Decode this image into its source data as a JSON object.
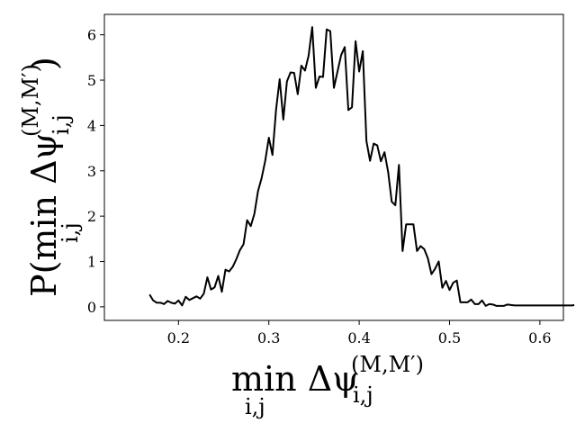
{
  "chart_data": {
    "type": "line",
    "xlabel": "min Δψ",
    "xlabel_sub": "i,j",
    "xlabel_sup": "(M,M′)",
    "xlabel_psi_sub": "i,j",
    "ylabel": "P(min Δψ",
    "ylabel_sub": "i,j",
    "ylabel_sup": "(M,M′)",
    "ylabel_psi_sub": "i,j",
    "ylabel_close": ")",
    "xlim": [
      0.118,
      0.626
    ],
    "ylim": [
      -0.3,
      6.45
    ],
    "xticks": [
      0.2,
      0.3,
      0.4,
      0.5,
      0.6
    ],
    "xtick_labels": [
      "0.2",
      "0.3",
      "0.4",
      "0.5",
      "0.6"
    ],
    "yticks": [
      0,
      1,
      2,
      3,
      4,
      5,
      6
    ],
    "ytick_labels": [
      "0",
      "1",
      "2",
      "3",
      "4",
      "5",
      "6"
    ],
    "grid": false,
    "line_color": "#000000",
    "series": [
      {
        "x": [
          0.168,
          0.172,
          0.176,
          0.18,
          0.184,
          0.188,
          0.192,
          0.196,
          0.2,
          0.204,
          0.208,
          0.212,
          0.216,
          0.22,
          0.224,
          0.228,
          0.232,
          0.236,
          0.24,
          0.244,
          0.248,
          0.252,
          0.256,
          0.26,
          0.264,
          0.268,
          0.272,
          0.276,
          0.28,
          0.284,
          0.288,
          0.292,
          0.296,
          0.3,
          0.304,
          0.308,
          0.312,
          0.316,
          0.32,
          0.324,
          0.328,
          0.332,
          0.336,
          0.34,
          0.344,
          0.348,
          0.352,
          0.356,
          0.36,
          0.364,
          0.368,
          0.372,
          0.376,
          0.38,
          0.384,
          0.388,
          0.392,
          0.396,
          0.4,
          0.404,
          0.408,
          0.412,
          0.416,
          0.42,
          0.424,
          0.428,
          0.432,
          0.436,
          0.44,
          0.444,
          0.448,
          0.452,
          0.456,
          0.46,
          0.464,
          0.468,
          0.472,
          0.476,
          0.48,
          0.484,
          0.488,
          0.492,
          0.496,
          0.5,
          0.504,
          0.508,
          0.512,
          0.516,
          0.52,
          0.524,
          0.528,
          0.532,
          0.536,
          0.54,
          0.544,
          0.548,
          0.552,
          0.556,
          0.56,
          0.564,
          0.568,
          0.572,
          0.576,
          0.58,
          0.584,
          0.588,
          0.592,
          0.596,
          0.6,
          0.604,
          0.608,
          0.612,
          0.616,
          0.62,
          0.624,
          0.628,
          0.632,
          0.636,
          0.638
        ],
        "y": [
          0.27,
          0.14,
          0.09,
          0.09,
          0.06,
          0.13,
          0.09,
          0.07,
          0.14,
          0.03,
          0.22,
          0.15,
          0.19,
          0.23,
          0.18,
          0.29,
          0.65,
          0.38,
          0.43,
          0.68,
          0.33,
          0.82,
          0.78,
          0.88,
          1.05,
          1.25,
          1.38,
          1.91,
          1.78,
          2.05,
          2.55,
          2.84,
          3.22,
          3.73,
          3.35,
          4.35,
          5.02,
          4.13,
          4.97,
          5.17,
          5.16,
          4.69,
          5.32,
          5.21,
          5.54,
          6.17,
          4.83,
          5.08,
          5.07,
          6.12,
          6.08,
          4.83,
          5.19,
          5.55,
          5.73,
          4.34,
          4.4,
          5.86,
          5.19,
          5.64,
          3.66,
          3.22,
          3.6,
          3.56,
          3.21,
          3.41,
          2.98,
          2.32,
          2.24,
          3.13,
          1.23,
          1.82,
          1.82,
          1.82,
          1.23,
          1.34,
          1.27,
          1.07,
          0.72,
          0.84,
          1.0,
          0.42,
          0.57,
          0.37,
          0.53,
          0.58,
          0.1,
          0.1,
          0.1,
          0.16,
          0.06,
          0.06,
          0.14,
          0.02,
          0.06,
          0.05,
          0.02,
          0.02,
          0.02,
          0.05,
          0.04,
          0.03,
          0.03,
          0.03,
          0.03,
          0.03,
          0.03,
          0.03,
          0.03,
          0.03,
          0.03,
          0.03,
          0.03,
          0.03,
          0.03,
          0.03,
          0.03,
          0.03,
          0.04
        ]
      }
    ]
  }
}
